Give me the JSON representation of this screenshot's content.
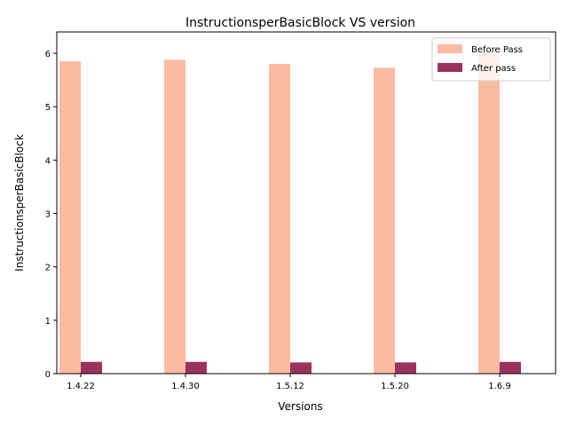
{
  "chart_data": {
    "type": "bar",
    "title": "InstructionsperBasicBlock VS version",
    "xlabel": "Versions",
    "ylabel": "InstructionsperBasicBlock",
    "categories": [
      "1.4.22",
      "1.4.30",
      "1.5.12",
      "1.5.20",
      "1.6.9"
    ],
    "series": [
      {
        "name": "Before Pass",
        "color": "#fbbba1",
        "values": [
          5.85,
          5.88,
          5.8,
          5.73,
          6.05
        ]
      },
      {
        "name": "After pass",
        "color": "#99325f",
        "values": [
          0.22,
          0.22,
          0.21,
          0.21,
          0.22
        ]
      }
    ],
    "ylim": [
      0,
      6.4
    ],
    "yticks": [
      0,
      1,
      2,
      3,
      4,
      5,
      6
    ],
    "grid": false,
    "legend_position": "top-right"
  }
}
